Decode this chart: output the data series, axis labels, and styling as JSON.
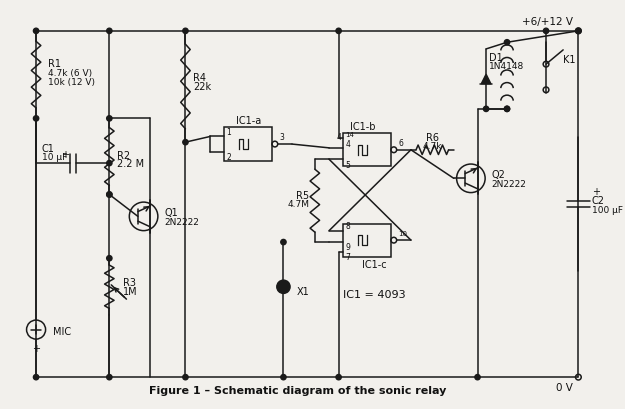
{
  "bg_color": "#f2f0ec",
  "line_color": "#1a1a1a",
  "text_color": "#111111",
  "title": "Figure 1 – Schematic diagram of the sonic relay",
  "figsize": [
    6.25,
    4.1
  ],
  "dpi": 100,
  "vcc_label": "+6/+12 V",
  "gnd_label": "0 V",
  "r1_label": "R1",
  "r1_val": "4.7k (6 V)\n10k (12 V)",
  "r2_label": "R2",
  "r2_val": "2.2 M",
  "r3_label": "R3",
  "r3_val": "1M",
  "r4_label": "R4",
  "r4_val": "22k",
  "r5_label": "R5",
  "r5_val": "4.7M",
  "r6_label": "R6",
  "r6_val": "4.7k",
  "c1_label": "C1",
  "c1_val": "10 μF",
  "c2_label": "C2",
  "c2_val": "100 μF",
  "q1_label": "Q1",
  "q1_val": "2N2222",
  "q2_label": "Q2",
  "q2_val": "2N2222",
  "d1_label": "D1",
  "d1_val": "1N4148",
  "k1_label": "K1",
  "x1_label": "X1",
  "ic1a_label": "IC1-a",
  "ic1b_label": "IC1-b",
  "ic1c_label": "IC1-c",
  "ic1_val": "IC1 = 4093",
  "mic_label": "MIC"
}
